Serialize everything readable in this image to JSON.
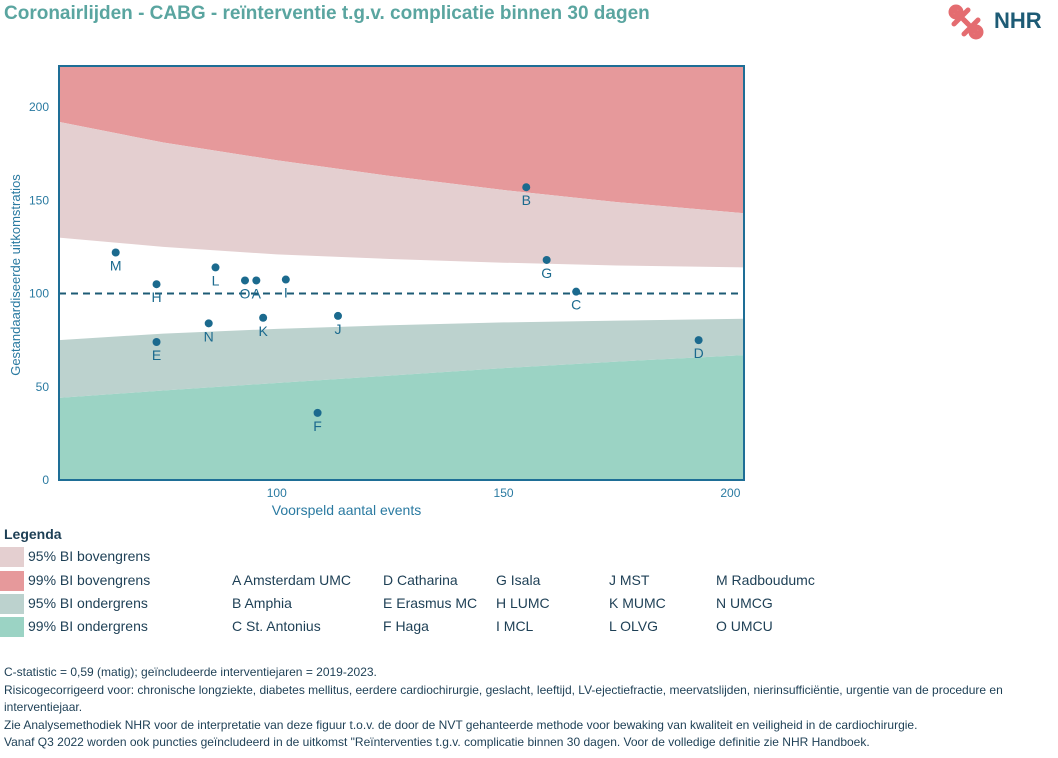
{
  "header": {
    "title": "Coronairlijden - CABG - reïnterventie t.g.v. complicatie binnen 30 dagen",
    "logo_text": "NHR"
  },
  "colors": {
    "upper99": "#e6999b",
    "upper95": "#e4cfd0",
    "lower95": "#bcd2ce",
    "lower99": "#9bd3c4",
    "points": "#1b6a8e",
    "frame": "#1e6e96",
    "axis_text": "#2a7aa1"
  },
  "chart_data": {
    "type": "scatter",
    "title": "",
    "xlabel": "Voorspeld aantal events",
    "ylabel": "Gestandaardiseerde uitkomstratios",
    "xlim": [
      52,
      203
    ],
    "ylim": [
      0,
      222
    ],
    "xticks": [
      100,
      150,
      200
    ],
    "yticks": [
      0,
      50,
      100,
      150,
      200
    ],
    "reference_line": 100,
    "bands": {
      "x": [
        52,
        75,
        100,
        125,
        150,
        175,
        203
      ],
      "upper99": [
        192,
        181,
        171.5,
        163,
        155.5,
        149,
        143
      ],
      "upper95": [
        130,
        125,
        121,
        118.5,
        116.5,
        115,
        114
      ],
      "lower95": [
        75,
        78.5,
        81,
        83,
        84.5,
        85.5,
        86.5
      ],
      "lower99": [
        44,
        48,
        52,
        56,
        60,
        63.5,
        67
      ]
    },
    "points": [
      {
        "label": "A",
        "x": 95.5,
        "y": 107
      },
      {
        "label": "B",
        "x": 155,
        "y": 157
      },
      {
        "label": "C",
        "x": 166,
        "y": 101
      },
      {
        "label": "D",
        "x": 193,
        "y": 75
      },
      {
        "label": "E",
        "x": 73.5,
        "y": 74
      },
      {
        "label": "F",
        "x": 109,
        "y": 36
      },
      {
        "label": "G",
        "x": 159.5,
        "y": 118
      },
      {
        "label": "H",
        "x": 73.5,
        "y": 105
      },
      {
        "label": "I",
        "x": 102,
        "y": 107.5
      },
      {
        "label": "J",
        "x": 113.5,
        "y": 88
      },
      {
        "label": "K",
        "x": 97,
        "y": 87
      },
      {
        "label": "L",
        "x": 86.5,
        "y": 114
      },
      {
        "label": "M",
        "x": 64.5,
        "y": 122
      },
      {
        "label": "N",
        "x": 85,
        "y": 84
      },
      {
        "label": "O",
        "x": 93,
        "y": 107
      }
    ],
    "legend": {
      "title": "Legenda",
      "items": [
        {
          "label": "95% BI bovengrens",
          "color": "#e4cfd0"
        },
        {
          "label": "99% BI bovengrens",
          "color": "#e6999b"
        },
        {
          "label": "95% BI ondergrens",
          "color": "#bcd2ce"
        },
        {
          "label": "99% BI ondergrens",
          "color": "#9bd3c4"
        }
      ]
    }
  },
  "hospitals": [
    [
      "A Amsterdam UMC",
      "B Amphia",
      "C St. Antonius"
    ],
    [
      "D Catharina",
      "E Erasmus MC",
      "F Haga"
    ],
    [
      "G Isala",
      "H LUMC",
      "I MCL"
    ],
    [
      "J MST",
      "K MUMC",
      "L OLVG"
    ],
    [
      "M Radboudumc",
      "N UMCG",
      "O UMCU"
    ]
  ],
  "notes": [
    "C-statistic =  0,59 (matig); geïncludeerde interventiejaren = 2019-2023.",
    "Risicogecorrigeerd voor: chronische longziekte, diabetes mellitus, eerdere cardiochirurgie, geslacht, leeftijd, LV-ejectiefractie, meervatslijden, nierinsufficiëntie, urgentie van de procedure en interventiejaar.",
    "Zie Analysemethodiek NHR voor de interpretatie van deze figuur t.o.v. de door de NVT gehanteerde methode voor bewaking van kwaliteit en veiligheid in de cardiochirurgie.",
    "Vanaf Q3 2022 worden ook puncties geïncludeerd in de uitkomst \"Reïnterventies t.g.v. complicatie binnen 30 dagen. Voor de volledige definitie zie NHR Handboek."
  ]
}
